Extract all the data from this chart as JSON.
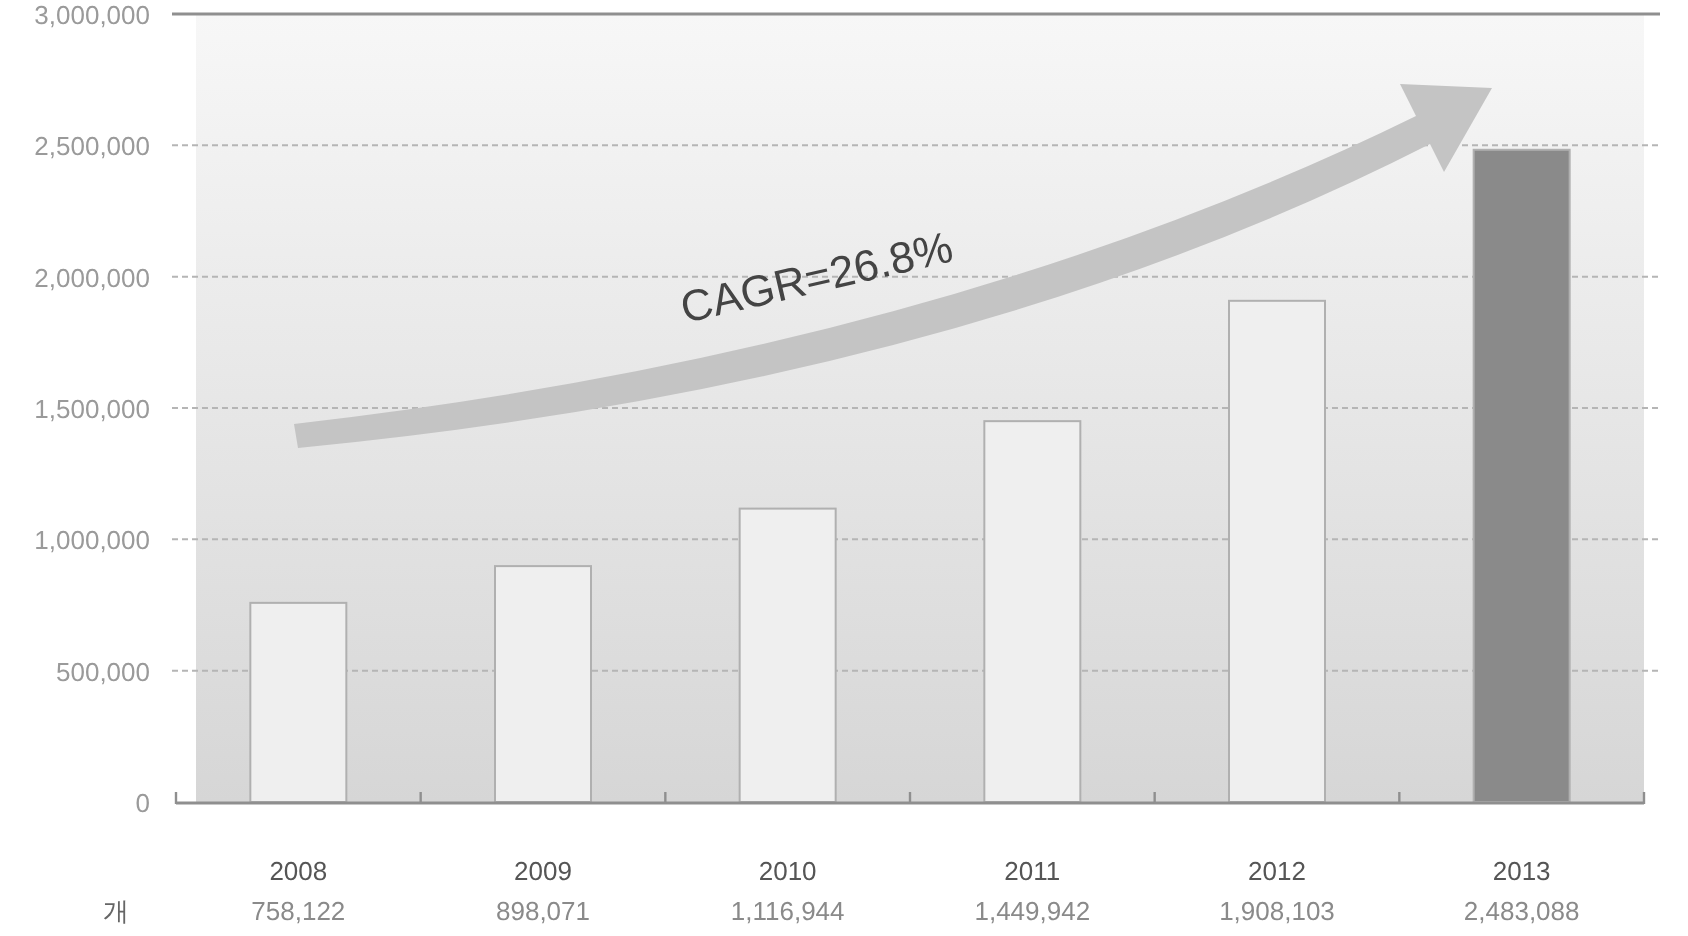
{
  "chart_data": {
    "type": "bar",
    "categories": [
      "2008",
      "2009",
      "2010",
      "2011",
      "2012",
      "2013"
    ],
    "values": [
      758122,
      898071,
      1116944,
      1449942,
      1908103,
      2483088
    ],
    "value_labels": [
      "758,122",
      "898,071",
      "1,116,944",
      "1,449,942",
      "1,908,103",
      "2,483,088"
    ],
    "colors": [
      "#efefef",
      "#efefef",
      "#efefef",
      "#efefef",
      "#efefef",
      "#8a8a8a"
    ],
    "ylim": [
      0,
      3000000
    ],
    "yticks": [
      {
        "value": 0,
        "label": "0"
      },
      {
        "value": 500000,
        "label": "500,000"
      },
      {
        "value": 1000000,
        "label": "1,000,000"
      },
      {
        "value": 1500000,
        "label": "1,500,000"
      },
      {
        "value": 2000000,
        "label": "2,000,000"
      },
      {
        "value": 2500000,
        "label": "2,500,000"
      },
      {
        "value": 3000000,
        "label": "3,000,000"
      }
    ],
    "grid": "y",
    "annotations": [
      "CAGR=26.8%",
      "개"
    ]
  }
}
